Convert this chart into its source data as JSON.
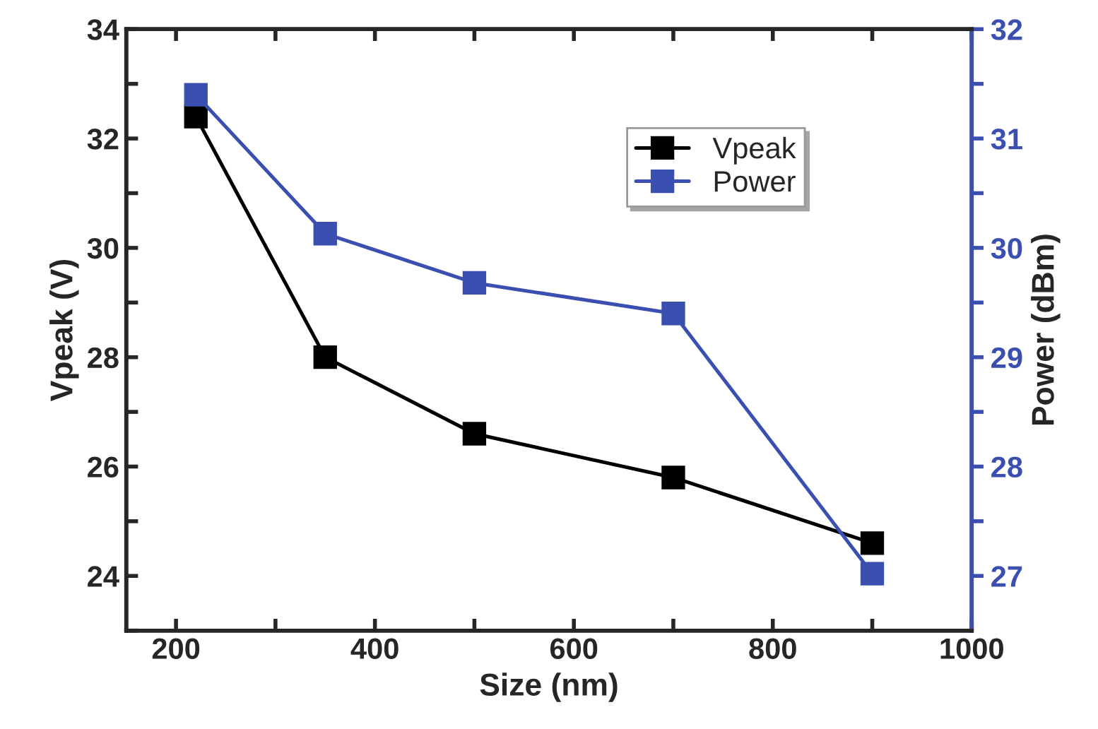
{
  "chart_data": {
    "type": "line",
    "xlabel": "Size (nm)",
    "ylabel": "Vpeak (V)",
    "y2label": "Power (dBm)",
    "x": [
      220,
      350,
      500,
      700,
      900
    ],
    "series": [
      {
        "name": "Vpeak",
        "color": "#000000",
        "values": [
          32.4,
          28.0,
          26.6,
          25.8,
          24.6
        ]
      },
      {
        "name": "Power",
        "color": "#3a4fb0",
        "axis": "y2",
        "values": [
          31.4,
          30.13,
          29.68,
          29.4,
          27.02
        ]
      }
    ],
    "xlim": [
      150,
      1000
    ],
    "xticks": [
      200,
      {
        "value": 300,
        "label": null
      },
      400,
      {
        "value": 500,
        "label": null
      },
      600,
      {
        "value": 700,
        "label": null
      },
      800,
      {
        "value": 900,
        "label": null
      },
      1000
    ],
    "ylim": [
      23,
      34
    ],
    "yticks": [
      {
        "value": 23,
        "label": null
      },
      24,
      {
        "value": 25,
        "label": null
      },
      26,
      {
        "value": 27,
        "label": null
      },
      28,
      {
        "value": 29,
        "label": null
      },
      30,
      {
        "value": 31,
        "label": null
      },
      32,
      {
        "value": 33,
        "label": null
      },
      34
    ],
    "y2lim": [
      26.5,
      32
    ],
    "y2ticks": [
      27,
      {
        "value": 27.5,
        "label": null
      },
      28,
      {
        "value": 28.5,
        "label": null
      },
      29,
      {
        "value": 29.5,
        "label": null
      },
      30,
      {
        "value": 30.5,
        "label": null
      },
      31,
      {
        "value": 31.5,
        "label": null
      },
      32
    ],
    "marker": "square",
    "line_style": "solid",
    "legend": "top right",
    "grid": false
  }
}
